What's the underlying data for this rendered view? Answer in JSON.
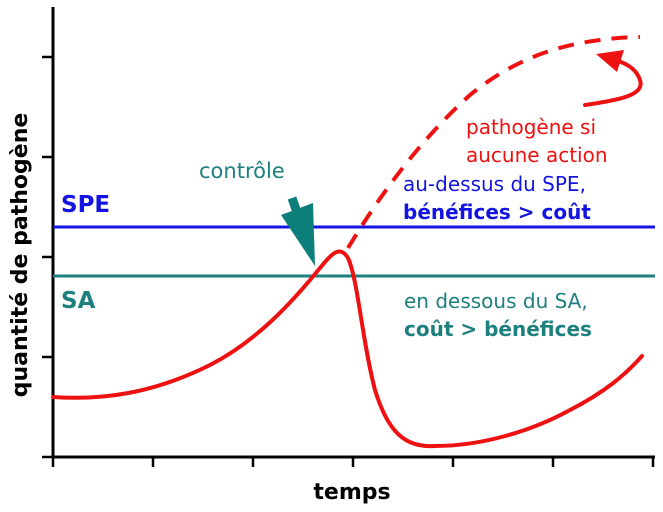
{
  "diagram": {
    "y_axis_label": "quantité de pathogène",
    "x_axis_label": "temps",
    "spe": {
      "label": "SPE",
      "color": "#1414e0",
      "note_line1": "au-dessus du SPE,",
      "note_line2": "bénéfices > coût"
    },
    "sa": {
      "label": "SA",
      "color": "#1e7f7f",
      "note_line1": "en dessous du SA,",
      "note_line2": "coût > bénéfices"
    },
    "control": {
      "label": "contrôle",
      "color": "#0d7f7a"
    },
    "no_action": {
      "label_line1": "pathogène si",
      "label_line2": "aucune action",
      "color": "#ee1111"
    },
    "curve_color": "#ee1111",
    "axis_color": "#000000"
  }
}
